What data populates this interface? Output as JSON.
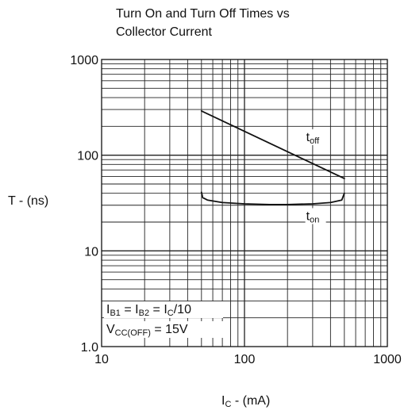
{
  "title_lines": [
    "Turn On and Turn Off Times vs",
    "Collector Current"
  ],
  "chart_data": {
    "type": "line",
    "x_scale": "log",
    "y_scale": "log",
    "xlim": [
      10,
      1000
    ],
    "ylim": [
      1,
      1000
    ],
    "grid": true,
    "ylabel": "T - (ns)",
    "xlabel": {
      "main": "I",
      "sub": "C",
      "rest": " - (mA)"
    },
    "x_ticks": [
      {
        "value": 10,
        "label": "10"
      },
      {
        "value": 100,
        "label": "100"
      },
      {
        "value": 1000,
        "label": "1000"
      }
    ],
    "y_ticks": [
      {
        "value": 1,
        "label": "1.0"
      },
      {
        "value": 10,
        "label": "10"
      },
      {
        "value": 100,
        "label": "100"
      },
      {
        "value": 1000,
        "label": "1000"
      }
    ],
    "series": [
      {
        "name": {
          "main": "t",
          "sub": "off"
        },
        "x": [
          50,
          500
        ],
        "y": [
          290,
          57
        ],
        "label_at": [
          270,
          140
        ]
      },
      {
        "name": {
          "main": "t",
          "sub": "on"
        },
        "x": [
          50,
          51,
          55,
          70,
          100,
          150,
          200,
          300,
          400,
          480,
          500
        ],
        "y": [
          41,
          36,
          34,
          32,
          31,
          30.5,
          30.5,
          31,
          32,
          34,
          40
        ],
        "label_at": [
          270,
          21
        ]
      }
    ],
    "annotations": [
      {
        "parts": [
          [
            "I",
            ""
          ],
          [
            "B1",
            "sub"
          ],
          [
            " = I",
            ""
          ],
          [
            "B2",
            "sub"
          ],
          [
            " = I",
            ""
          ],
          [
            "C",
            "sub"
          ],
          [
            "/10",
            ""
          ]
        ]
      },
      {
        "parts": [
          [
            "V",
            ""
          ],
          [
            "CC(OFF)",
            "sub"
          ],
          [
            " = 15V",
            ""
          ]
        ]
      }
    ]
  }
}
